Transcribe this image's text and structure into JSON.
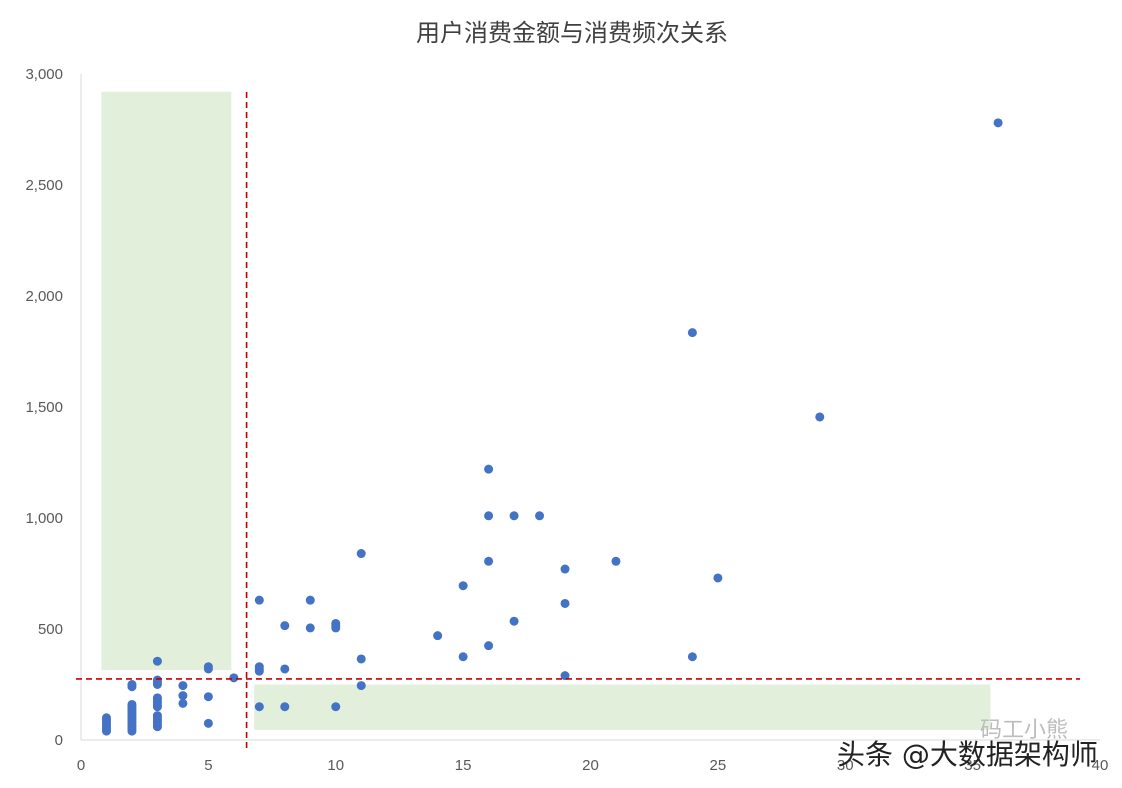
{
  "chart_data": {
    "type": "scatter",
    "title": "用户消费金额与消费频次关系",
    "xlabel": "",
    "ylabel": "",
    "xlim": [
      0,
      40
    ],
    "ylim": [
      0,
      3000
    ],
    "x_ticks": [
      "0",
      "5",
      "10",
      "15",
      "20",
      "25",
      "30",
      "35",
      "40"
    ],
    "y_ticks": [
      "0",
      "500",
      "1,000",
      "1,500",
      "2,000",
      "2,500",
      "3,000"
    ],
    "grid": false,
    "colors": {
      "point": "#4472C4",
      "threshold_line": "#C00000",
      "highlight_region": "#E2EFDA"
    },
    "thresholds": {
      "x": 6.5,
      "y": 275
    },
    "highlight_regions": [
      {
        "x_range": [
          0.8,
          5.9
        ],
        "y_range": [
          315,
          2920
        ]
      },
      {
        "x_range": [
          6.8,
          35.7
        ],
        "y_range": [
          45,
          250
        ]
      }
    ],
    "points": [
      [
        1,
        40
      ],
      [
        1,
        50
      ],
      [
        1,
        60
      ],
      [
        1,
        70
      ],
      [
        1,
        80
      ],
      [
        1,
        90
      ],
      [
        1,
        100
      ],
      [
        2,
        40
      ],
      [
        2,
        50
      ],
      [
        2,
        60
      ],
      [
        2,
        70
      ],
      [
        2,
        80
      ],
      [
        2,
        90
      ],
      [
        2,
        100
      ],
      [
        2,
        110
      ],
      [
        2,
        120
      ],
      [
        2,
        130
      ],
      [
        2,
        140
      ],
      [
        2,
        150
      ],
      [
        2,
        160
      ],
      [
        2,
        240
      ],
      [
        2,
        250
      ],
      [
        3,
        60
      ],
      [
        3,
        70
      ],
      [
        3,
        80
      ],
      [
        3,
        90
      ],
      [
        3,
        100
      ],
      [
        3,
        110
      ],
      [
        3,
        150
      ],
      [
        3,
        160
      ],
      [
        3,
        170
      ],
      [
        3,
        180
      ],
      [
        3,
        190
      ],
      [
        3,
        250
      ],
      [
        3,
        260
      ],
      [
        3,
        270
      ],
      [
        3,
        355
      ],
      [
        4,
        165
      ],
      [
        4,
        200
      ],
      [
        4,
        245
      ],
      [
        5,
        75
      ],
      [
        5,
        195
      ],
      [
        5,
        320
      ],
      [
        5,
        330
      ],
      [
        6,
        280
      ],
      [
        7,
        150
      ],
      [
        7,
        310
      ],
      [
        7,
        320
      ],
      [
        7,
        330
      ],
      [
        7,
        630
      ],
      [
        8,
        150
      ],
      [
        8,
        320
      ],
      [
        8,
        515
      ],
      [
        9,
        505
      ],
      [
        9,
        630
      ],
      [
        10,
        150
      ],
      [
        10,
        505
      ],
      [
        10,
        515
      ],
      [
        10,
        525
      ],
      [
        11,
        245
      ],
      [
        11,
        365
      ],
      [
        11,
        840
      ],
      [
        14,
        470
      ],
      [
        15,
        375
      ],
      [
        15,
        695
      ],
      [
        16,
        425
      ],
      [
        16,
        805
      ],
      [
        16,
        1010
      ],
      [
        16,
        1220
      ],
      [
        17,
        535
      ],
      [
        17,
        1010
      ],
      [
        18,
        1010
      ],
      [
        19,
        290
      ],
      [
        19,
        615
      ],
      [
        19,
        770
      ],
      [
        21,
        805
      ],
      [
        24,
        375
      ],
      [
        24,
        1835
      ],
      [
        25,
        730
      ],
      [
        29,
        1455
      ],
      [
        36,
        2780
      ]
    ]
  },
  "watermark": {
    "text": "头条 @大数据架构师",
    "faint_text": "码工小熊"
  }
}
